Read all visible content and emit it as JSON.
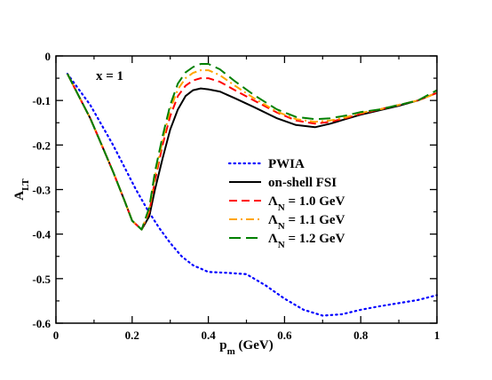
{
  "chart_data": {
    "type": "line",
    "xlabel": {
      "main": "p",
      "sub": "m",
      "unit": " (GeV)"
    },
    "ylabel": {
      "main": "A",
      "sub": "LT"
    },
    "annotation": "x = 1",
    "xlim": [
      0,
      1
    ],
    "ylim": [
      -0.6,
      0
    ],
    "xticks": [
      0,
      0.2,
      0.4,
      0.6,
      0.8,
      1
    ],
    "xtick_labels": [
      "0",
      "0.2",
      "0.4",
      "0.6",
      "0.8",
      "1"
    ],
    "yticks": [
      0,
      -0.1,
      -0.2,
      -0.3,
      -0.4,
      -0.5,
      -0.6
    ],
    "ytick_labels": [
      "0",
      "-0.1",
      "-0.2",
      "-0.3",
      "-0.4",
      "-0.5",
      "-0.6"
    ],
    "legend_position": "center-right",
    "series": [
      {
        "name": "PWIA",
        "legend": {
          "main": "PWIA"
        },
        "color": "#0000ff",
        "style": "dotted",
        "x": [
          0.03,
          0.06,
          0.09,
          0.12,
          0.15,
          0.18,
          0.21,
          0.24,
          0.27,
          0.3,
          0.33,
          0.36,
          0.4,
          0.45,
          0.5,
          0.55,
          0.6,
          0.65,
          0.7,
          0.75,
          0.8,
          0.85,
          0.9,
          0.95,
          1.0
        ],
        "y": [
          -0.04,
          -0.075,
          -0.11,
          -0.155,
          -0.2,
          -0.25,
          -0.3,
          -0.345,
          -0.385,
          -0.42,
          -0.45,
          -0.47,
          -0.485,
          -0.487,
          -0.49,
          -0.515,
          -0.545,
          -0.57,
          -0.583,
          -0.58,
          -0.57,
          -0.562,
          -0.555,
          -0.548,
          -0.537
        ]
      },
      {
        "name": "on-shell FSI",
        "legend": {
          "main": "on-shell FSI"
        },
        "color": "#000000",
        "style": "solid",
        "x": [
          0.03,
          0.06,
          0.09,
          0.12,
          0.15,
          0.18,
          0.2,
          0.225,
          0.245,
          0.26,
          0.28,
          0.3,
          0.32,
          0.34,
          0.36,
          0.38,
          0.4,
          0.43,
          0.47,
          0.52,
          0.58,
          0.63,
          0.68,
          0.72,
          0.76,
          0.8,
          0.85,
          0.9,
          0.95,
          1.0
        ],
        "y": [
          -0.04,
          -0.09,
          -0.14,
          -0.2,
          -0.26,
          -0.325,
          -0.37,
          -0.39,
          -0.36,
          -0.3,
          -0.23,
          -0.165,
          -0.12,
          -0.09,
          -0.077,
          -0.073,
          -0.075,
          -0.08,
          -0.095,
          -0.115,
          -0.14,
          -0.155,
          -0.16,
          -0.152,
          -0.142,
          -0.132,
          -0.122,
          -0.112,
          -0.1,
          -0.083
        ]
      },
      {
        "name": "Λ_N = 1.0 GeV",
        "legend": {
          "main": "Λ",
          "sub": "N",
          "rest": " = 1.0 GeV"
        },
        "color": "#ff0000",
        "style": "dashed",
        "x": [
          0.03,
          0.06,
          0.09,
          0.12,
          0.15,
          0.18,
          0.2,
          0.225,
          0.245,
          0.26,
          0.28,
          0.3,
          0.32,
          0.34,
          0.36,
          0.38,
          0.4,
          0.43,
          0.47,
          0.52,
          0.58,
          0.63,
          0.68,
          0.72,
          0.76,
          0.8,
          0.85,
          0.9,
          0.95,
          1.0
        ],
        "y": [
          -0.04,
          -0.09,
          -0.14,
          -0.2,
          -0.26,
          -0.325,
          -0.37,
          -0.39,
          -0.35,
          -0.28,
          -0.2,
          -0.135,
          -0.09,
          -0.067,
          -0.055,
          -0.05,
          -0.05,
          -0.058,
          -0.077,
          -0.1,
          -0.127,
          -0.145,
          -0.152,
          -0.148,
          -0.14,
          -0.13,
          -0.12,
          -0.11,
          -0.1,
          -0.083
        ]
      },
      {
        "name": "Λ_N = 1.1 GeV",
        "legend": {
          "main": "Λ",
          "sub": "N",
          "rest": " = 1.1 GeV"
        },
        "color": "#ffa500",
        "style": "dashdot",
        "x": [
          0.03,
          0.06,
          0.09,
          0.12,
          0.15,
          0.18,
          0.2,
          0.225,
          0.245,
          0.26,
          0.28,
          0.3,
          0.32,
          0.34,
          0.36,
          0.38,
          0.4,
          0.43,
          0.47,
          0.52,
          0.58,
          0.63,
          0.68,
          0.72,
          0.76,
          0.8,
          0.85,
          0.9,
          0.95,
          1.0
        ],
        "y": [
          -0.04,
          -0.09,
          -0.14,
          -0.2,
          -0.26,
          -0.325,
          -0.37,
          -0.39,
          -0.345,
          -0.27,
          -0.19,
          -0.12,
          -0.075,
          -0.05,
          -0.038,
          -0.032,
          -0.032,
          -0.043,
          -0.067,
          -0.095,
          -0.125,
          -0.142,
          -0.148,
          -0.145,
          -0.138,
          -0.128,
          -0.12,
          -0.11,
          -0.1,
          -0.083
        ]
      },
      {
        "name": "Λ_N = 1.2 GeV",
        "legend": {
          "main": "Λ",
          "sub": "N",
          "rest": " = 1.2 GeV"
        },
        "color": "#008000",
        "style": "longdash",
        "x": [
          0.03,
          0.06,
          0.09,
          0.12,
          0.15,
          0.18,
          0.2,
          0.225,
          0.245,
          0.26,
          0.28,
          0.3,
          0.32,
          0.34,
          0.36,
          0.38,
          0.4,
          0.43,
          0.47,
          0.52,
          0.58,
          0.63,
          0.68,
          0.72,
          0.76,
          0.8,
          0.85,
          0.9,
          0.95,
          1.0
        ],
        "y": [
          -0.04,
          -0.09,
          -0.14,
          -0.2,
          -0.26,
          -0.325,
          -0.37,
          -0.39,
          -0.34,
          -0.26,
          -0.18,
          -0.11,
          -0.062,
          -0.037,
          -0.025,
          -0.018,
          -0.018,
          -0.03,
          -0.057,
          -0.088,
          -0.12,
          -0.137,
          -0.142,
          -0.14,
          -0.134,
          -0.126,
          -0.12,
          -0.11,
          -0.1,
          -0.077
        ]
      }
    ]
  }
}
